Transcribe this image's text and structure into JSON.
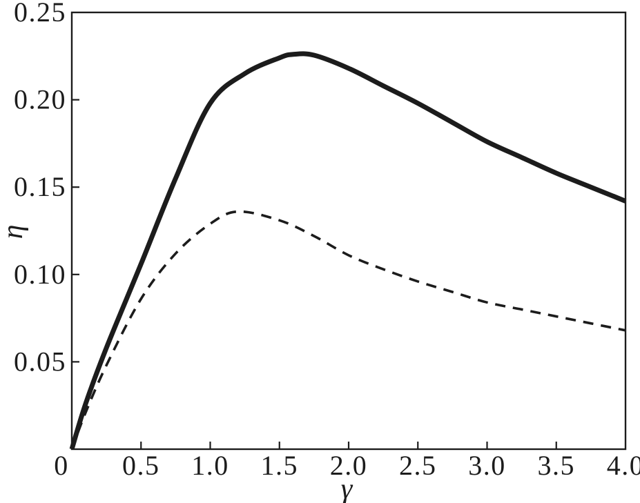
{
  "figure": {
    "background": "#ffffff",
    "line_color": "#1c1c1c",
    "tick_label_color": "#1c1c1c"
  },
  "chart_data": {
    "type": "line",
    "title": "",
    "xlabel": "γ",
    "ylabel": "η",
    "xlim": [
      0,
      4
    ],
    "ylim": [
      0,
      0.25
    ],
    "grid": false,
    "legend": "none",
    "xticks": [
      {
        "value": 0,
        "label": "0"
      },
      {
        "value": 0.5,
        "label": "0.5"
      },
      {
        "value": 1.0,
        "label": "1.0"
      },
      {
        "value": 1.5,
        "label": "1.5"
      },
      {
        "value": 2.0,
        "label": "2.0"
      },
      {
        "value": 2.5,
        "label": "2.5"
      },
      {
        "value": 3.0,
        "label": "3.0"
      },
      {
        "value": 3.5,
        "label": "3.5"
      },
      {
        "value": 4.0,
        "label": "4.0"
      }
    ],
    "yticks": [
      {
        "value": 0.05,
        "label": "0.05"
      },
      {
        "value": 0.1,
        "label": "0.10"
      },
      {
        "value": 0.15,
        "label": "0.15"
      },
      {
        "value": 0.2,
        "label": "0.20"
      },
      {
        "value": 0.25,
        "label": "0.25"
      }
    ],
    "series": [
      {
        "name": "solid-curve",
        "style": "solid",
        "stroke_width": 7,
        "color": "#1c1c1c",
        "peak": {
          "x": 1.6,
          "y": 0.226
        },
        "x": [
          0,
          0.1,
          0.25,
          0.5,
          0.75,
          1.0,
          1.25,
          1.5,
          1.6,
          1.75,
          2.0,
          2.25,
          2.5,
          2.75,
          3.0,
          3.25,
          3.5,
          3.75,
          4.0
        ],
        "y": [
          0,
          0.026,
          0.058,
          0.106,
          0.155,
          0.198,
          0.215,
          0.224,
          0.226,
          0.2255,
          0.218,
          0.208,
          0.198,
          0.187,
          0.176,
          0.167,
          0.158,
          0.15,
          0.142
        ]
      },
      {
        "name": "dashed-curve",
        "style": "dashed",
        "stroke_width": 3.6,
        "color": "#1c1c1c",
        "dash": [
          15,
          11
        ],
        "peak": {
          "x": 1.2,
          "y": 0.136
        },
        "x": [
          0,
          0.1,
          0.25,
          0.5,
          0.75,
          1.0,
          1.2,
          1.5,
          1.75,
          2.0,
          2.25,
          2.5,
          2.75,
          3.0,
          3.25,
          3.5,
          3.75,
          4.0
        ],
        "y": [
          0,
          0.021,
          0.048,
          0.086,
          0.112,
          0.129,
          0.136,
          0.131,
          0.122,
          0.111,
          0.103,
          0.096,
          0.09,
          0.084,
          0.08,
          0.076,
          0.072,
          0.068
        ]
      }
    ]
  }
}
